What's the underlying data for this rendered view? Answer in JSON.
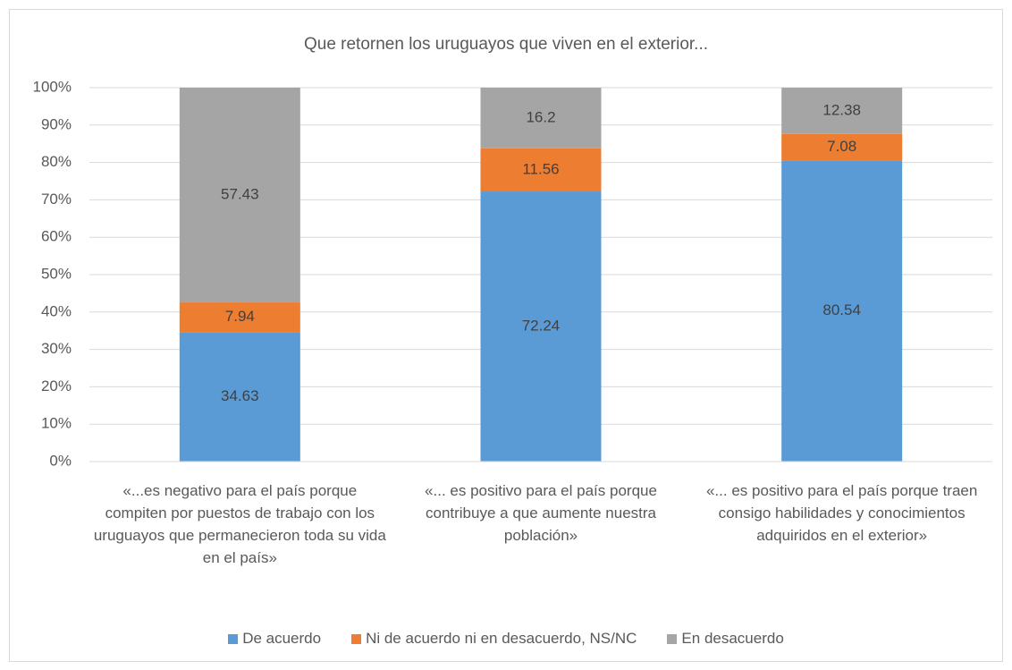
{
  "chart_data": {
    "type": "stacked_bar",
    "title": "Que retornen los uruguayos que viven en el exterior...",
    "categories": [
      "«...es negativo para el país porque compiten por puestos de trabajo con los uruguayos que permanecieron toda su vida en el país»",
      "«... es positivo para el país porque contribuye a que aumente nuestra población»",
      "«... es positivo para el país porque traen consigo habilidades y conocimientos adquiridos en el exterior»"
    ],
    "series": [
      {
        "name": "De acuerdo",
        "color": "#5b9bd5",
        "values": [
          34.63,
          72.24,
          80.54
        ]
      },
      {
        "name": "Ni de acuerdo ni en desacuerdo, NS/NC",
        "color": "#ed7d31",
        "values": [
          7.94,
          11.56,
          7.08
        ]
      },
      {
        "name": "En desacuerdo",
        "color": "#a5a5a5",
        "values": [
          57.43,
          16.2,
          12.38
        ]
      }
    ],
    "ylim": [
      0,
      100
    ],
    "yticks": [
      {
        "value": 0,
        "label": "0%"
      },
      {
        "value": 10,
        "label": "10%"
      },
      {
        "value": 20,
        "label": "20%"
      },
      {
        "value": 30,
        "label": "30%"
      },
      {
        "value": 40,
        "label": "40%"
      },
      {
        "value": 50,
        "label": "50%"
      },
      {
        "value": 60,
        "label": "60%"
      },
      {
        "value": 70,
        "label": "70%"
      },
      {
        "value": 80,
        "label": "80%"
      },
      {
        "value": 90,
        "label": "90%"
      },
      {
        "value": 100,
        "label": "100%"
      }
    ],
    "grid": true,
    "legend": "bottom"
  }
}
